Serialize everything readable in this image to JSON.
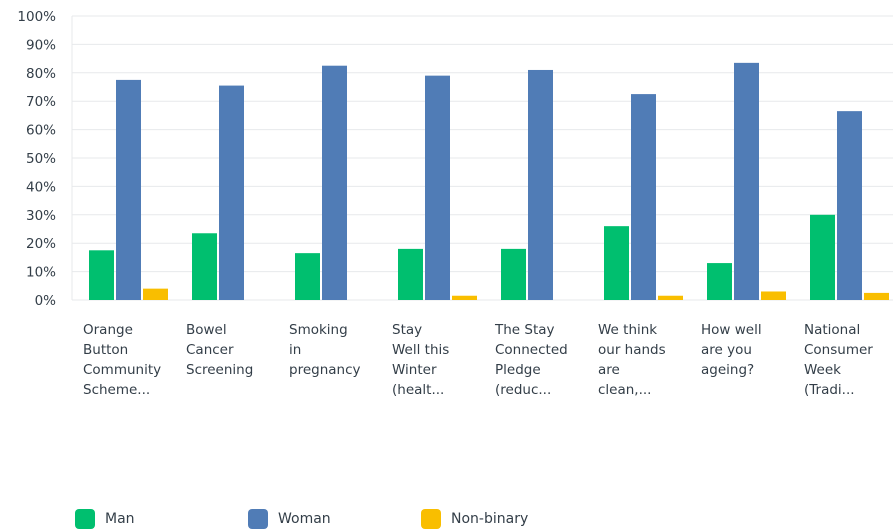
{
  "chart_data": {
    "type": "bar",
    "categories": [
      [
        "Orange",
        "Button",
        "Community",
        "Scheme..."
      ],
      [
        "Bowel",
        "Cancer",
        "Screening"
      ],
      [
        "Smoking",
        "in",
        "pregnancy"
      ],
      [
        "Stay",
        "Well this",
        "Winter",
        "(healt..."
      ],
      [
        "The Stay",
        "Connected",
        "Pledge",
        "(reduc..."
      ],
      [
        "We think",
        "our hands",
        "are",
        "clean,..."
      ],
      [
        "How well",
        "are you",
        "ageing?"
      ],
      [
        "National",
        "Consumer",
        "Week",
        "(Tradi..."
      ]
    ],
    "series": [
      {
        "name": "Man",
        "color": "#00bf6f",
        "values": [
          17.5,
          23.5,
          16.5,
          18.0,
          18.0,
          26.0,
          13.0,
          30.0
        ]
      },
      {
        "name": "Woman",
        "color": "#507cb6",
        "values": [
          77.5,
          75.5,
          82.5,
          79.0,
          81.0,
          72.5,
          83.5,
          66.5
        ]
      },
      {
        "name": "Non-binary",
        "color": "#f9be00",
        "values": [
          4.0,
          0,
          0,
          1.5,
          0,
          1.5,
          3.0,
          2.5
        ]
      }
    ],
    "ylim": [
      0,
      100
    ],
    "yticks": [
      "0%",
      "10%",
      "20%",
      "30%",
      "40%",
      "50%",
      "60%",
      "70%",
      "80%",
      "90%",
      "100%"
    ],
    "grid": true,
    "legend_position": "bottom-left"
  }
}
